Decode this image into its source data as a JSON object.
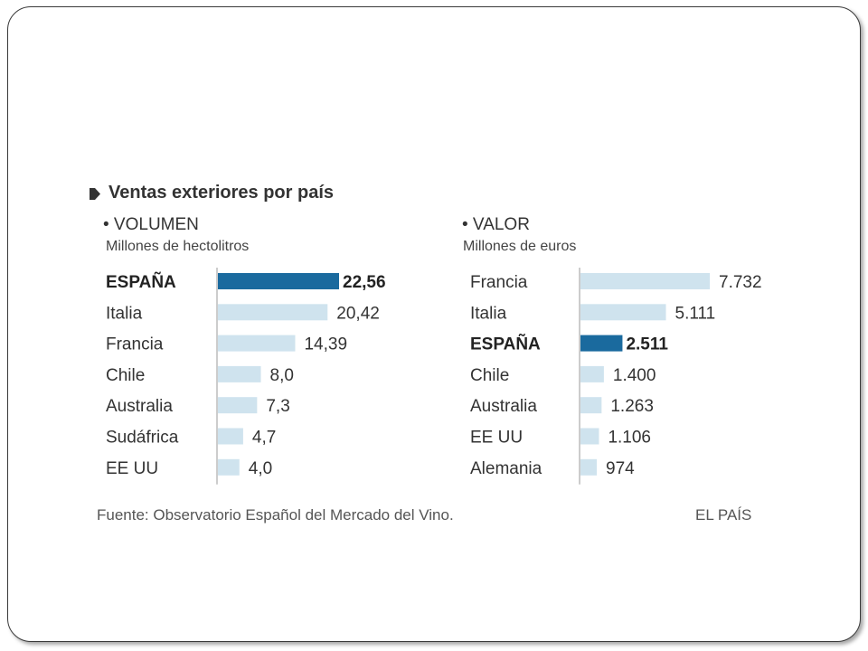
{
  "title": "Ventas exteriores por país",
  "source": "Fuente: Observatorio Español del Mercado del Vino.",
  "brand": "EL PAÍS",
  "colors": {
    "highlight": "#1a6a9e",
    "bar": "#cfe3ee",
    "axis": "#9a9a9a"
  },
  "chart_data": [
    {
      "type": "bar",
      "orientation": "horizontal",
      "title": "• VOLUMEN",
      "subtitle": "Millones de hectolitros",
      "categories": [
        "ESPAÑA",
        "Italia",
        "Francia",
        "Chile",
        "Australia",
        "Sudáfrica",
        "EE UU"
      ],
      "values": [
        22.56,
        20.42,
        14.39,
        8.0,
        7.3,
        4.7,
        4.0
      ],
      "value_labels": [
        "22,56",
        "20,42",
        "14,39",
        "8,0",
        "7,3",
        "4,7",
        "4,0"
      ],
      "highlight": "ESPAÑA",
      "xlim": [
        0,
        22.56
      ],
      "grid": false
    },
    {
      "type": "bar",
      "orientation": "horizontal",
      "title": "• VALOR",
      "subtitle": "Millones de euros",
      "categories": [
        "Francia",
        "Italia",
        "ESPAÑA",
        "Chile",
        "Australia",
        "EE UU",
        "Alemania"
      ],
      "values": [
        7732,
        5111,
        2511,
        1400,
        1263,
        1106,
        974
      ],
      "value_labels": [
        "7.732",
        "5.111",
        "2.511",
        "1.400",
        "1.263",
        "1.106",
        "974"
      ],
      "highlight": "ESPAÑA",
      "xlim": [
        0,
        7732
      ],
      "grid": false
    }
  ]
}
